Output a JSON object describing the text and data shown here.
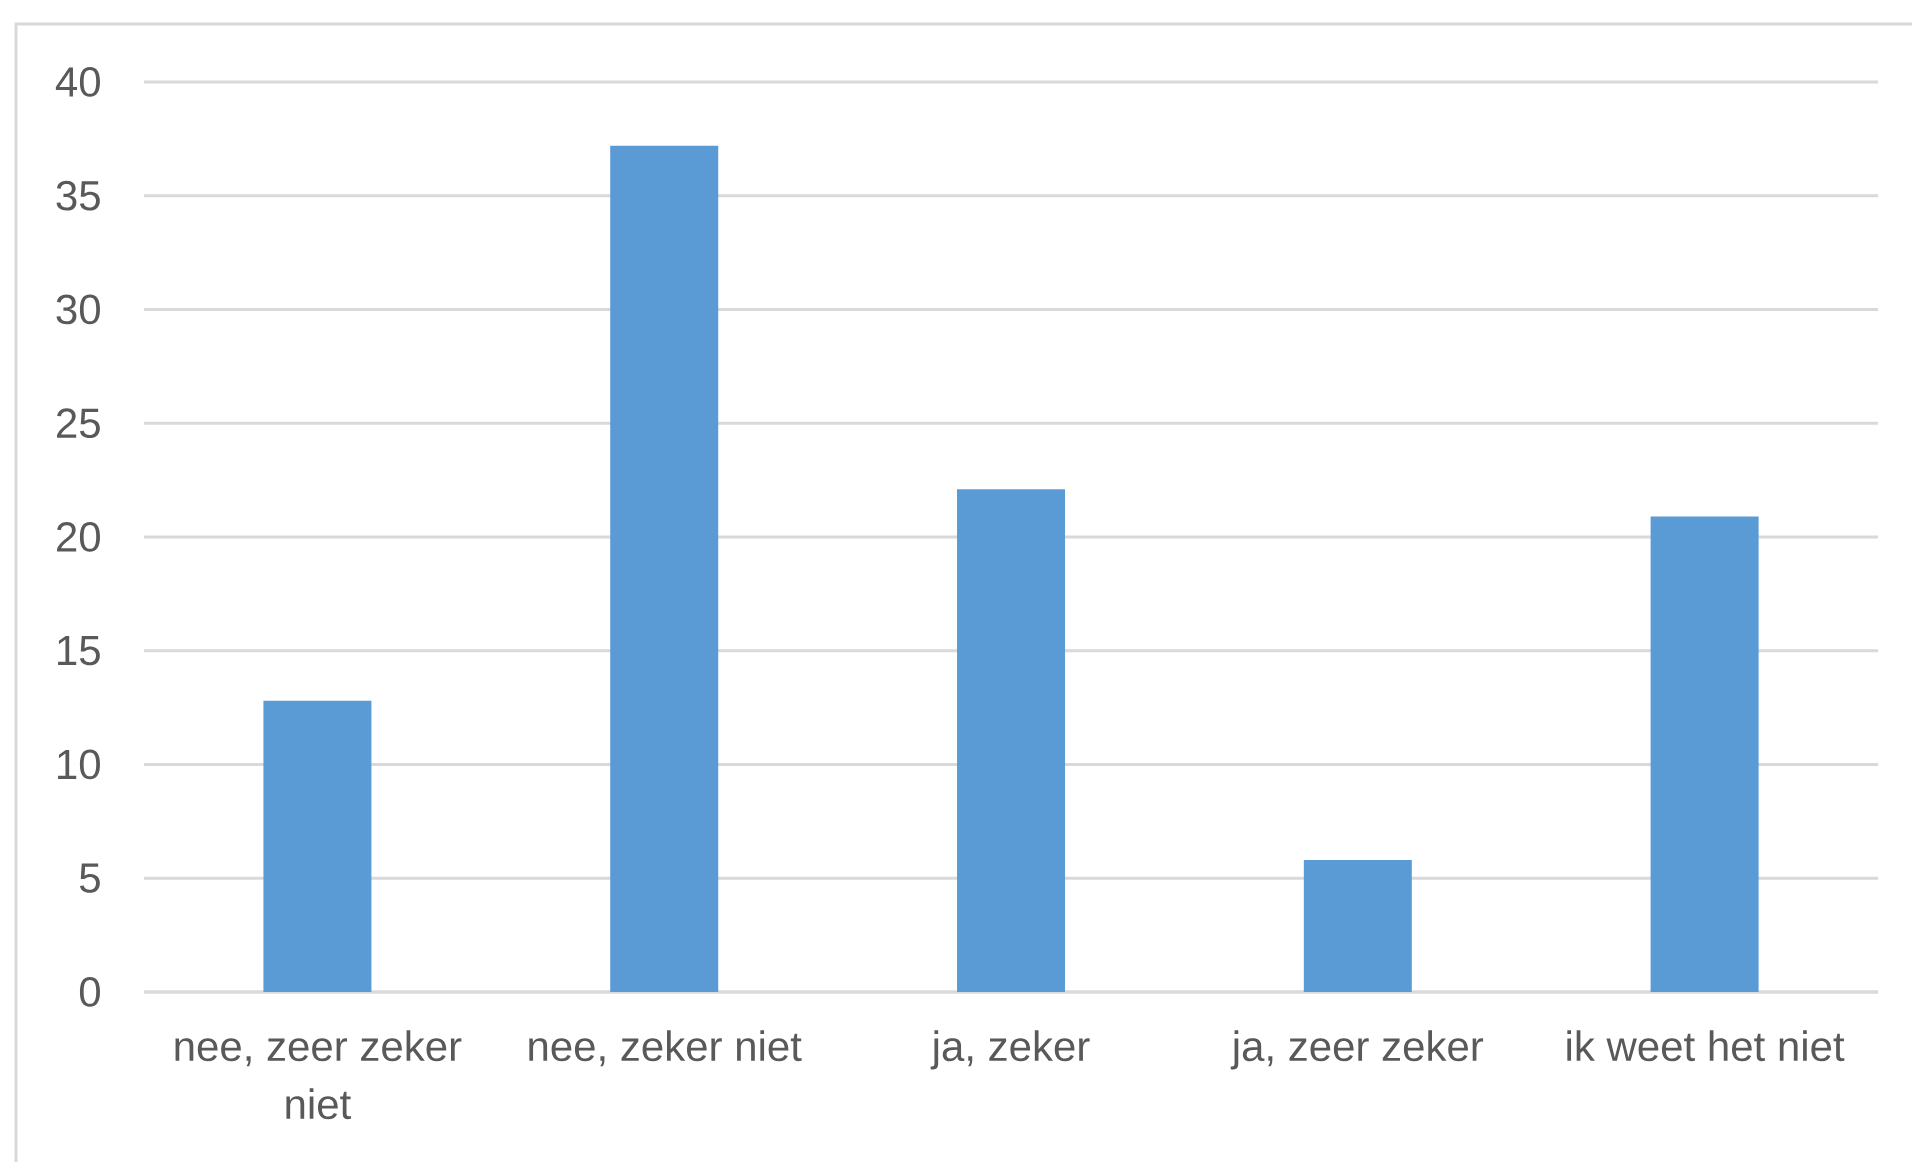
{
  "chart_data": {
    "type": "bar",
    "categories": [
      "nee, zeer zeker niet",
      "nee, zeker niet",
      "ja, zeker",
      "ja, zeer zeker",
      "ik weet het niet"
    ],
    "values": [
      12.8,
      37.2,
      22.1,
      5.8,
      20.9
    ],
    "color": "#5b9bd5",
    "ylim": [
      0,
      40
    ],
    "yticks": [
      0,
      5,
      10,
      15,
      20,
      25,
      30,
      35,
      40
    ],
    "grid": "y"
  }
}
